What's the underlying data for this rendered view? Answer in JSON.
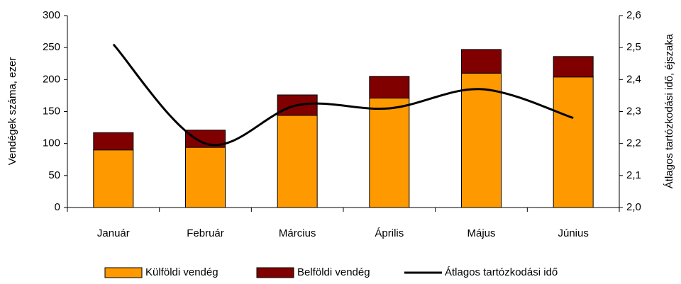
{
  "chart_data": {
    "type": "bar",
    "stacked": true,
    "categories": [
      "Január",
      "Február",
      "Március",
      "Április",
      "Május",
      "Június"
    ],
    "series": [
      {
        "name": "Külföldi vendég",
        "color": "#ff9900",
        "values": [
          90,
          94,
          144,
          171,
          210,
          204
        ]
      },
      {
        "name": "Belföldi vendég",
        "color": "#800000",
        "values": [
          27,
          27,
          32,
          34,
          37,
          32
        ]
      },
      {
        "name": "Átlagos tartózkodási idő",
        "type": "line",
        "axis": "y2",
        "color": "#000000",
        "values": [
          2.51,
          2.2,
          2.32,
          2.31,
          2.37,
          2.28
        ]
      }
    ],
    "ylabel": "Vendégek száma, ezer",
    "y2label": "Átlagos tartózkodási idő, éjszaka",
    "ylim": [
      0,
      300
    ],
    "yticks": [
      0,
      50,
      100,
      150,
      200,
      250,
      300
    ],
    "y2lim": [
      2.0,
      2.6
    ],
    "y2ticks": [
      {
        "value": 2.0,
        "label": "2,0"
      },
      {
        "value": 2.1,
        "label": "2,1"
      },
      {
        "value": 2.2,
        "label": "2,2"
      },
      {
        "value": 2.3,
        "label": "2,3"
      },
      {
        "value": 2.4,
        "label": "2,4"
      },
      {
        "value": 2.5,
        "label": "2,5"
      },
      {
        "value": 2.6,
        "label": "2,6"
      }
    ],
    "grid": false,
    "legend": "bottom"
  }
}
